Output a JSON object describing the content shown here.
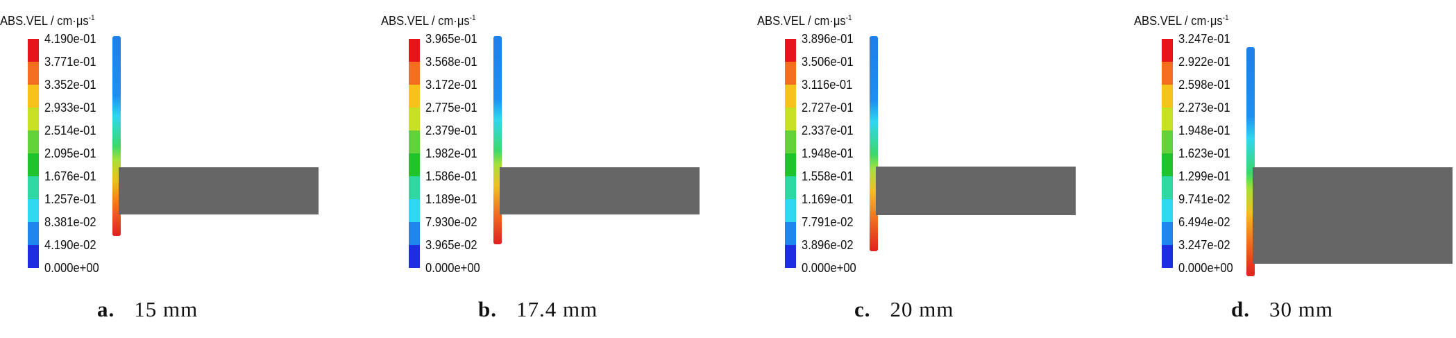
{
  "panels": [
    {
      "legend_title": "ABS.VEL / cm·μs",
      "legend_exponent": "-1",
      "ticks": [
        "4.190e-01",
        "3.771e-01",
        "3.352e-01",
        "2.933e-01",
        "2.514e-01",
        "2.095e-01",
        "1.676e-01",
        "1.257e-01",
        "8.381e-02",
        "4.190e-02",
        "0.000e+00"
      ],
      "caption_letter": "a.",
      "caption_text": "15 mm"
    },
    {
      "legend_title": "ABS.VEL / cm·μs",
      "legend_exponent": "-1",
      "ticks": [
        "3.965e-01",
        "3.568e-01",
        "3.172e-01",
        "2.775e-01",
        "2.379e-01",
        "1.982e-01",
        "1.586e-01",
        "1.189e-01",
        "7.930e-02",
        "3.965e-02",
        "0.000e+00"
      ],
      "caption_letter": "b.",
      "caption_text": "17.4 mm"
    },
    {
      "legend_title": "ABS.VEL / cm·μs",
      "legend_exponent": "-1",
      "ticks": [
        "3.896e-01",
        "3.506e-01",
        "3.116e-01",
        "2.727e-01",
        "2.337e-01",
        "1.948e-01",
        "1.558e-01",
        "1.169e-01",
        "7.791e-02",
        "3.896e-02",
        "0.000e+00"
      ],
      "caption_letter": "c.",
      "caption_text": "20 mm"
    },
    {
      "legend_title": "ABS.VEL / cm·μs",
      "legend_exponent": "-1",
      "ticks": [
        "3.247e-01",
        "2.922e-01",
        "2.598e-01",
        "2.273e-01",
        "1.948e-01",
        "1.623e-01",
        "1.299e-01",
        "9.741e-02",
        "6.494e-02",
        "3.247e-02",
        "0.000e+00"
      ],
      "caption_letter": "d.",
      "caption_text": "30 mm"
    }
  ]
}
